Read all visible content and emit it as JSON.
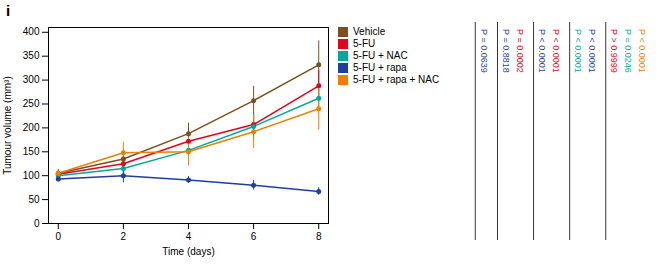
{
  "chart_data": {
    "type": "line",
    "title": "i",
    "xlabel": "Time (days)",
    "ylabel": "Tumour volume (mm³)",
    "x": [
      0,
      2,
      4,
      6,
      8
    ],
    "series": [
      {
        "name": "Vehicle",
        "color": "#7B5020",
        "values": [
          105,
          135,
          188,
          257,
          332
        ],
        "errors": [
          8,
          18,
          22,
          30,
          50
        ]
      },
      {
        "name": "5-FU",
        "color": "#E8001C",
        "values": [
          103,
          125,
          172,
          207,
          288
        ],
        "errors": [
          7,
          15,
          20,
          22,
          32
        ]
      },
      {
        "name": "5-FU + NAC",
        "color": "#00A99D",
        "values": [
          100,
          115,
          153,
          203,
          262
        ],
        "errors": [
          6,
          12,
          25,
          28,
          18
        ]
      },
      {
        "name": "5-FU + rapa",
        "color": "#1F3F9E",
        "values": [
          93,
          100,
          91,
          80,
          67
        ],
        "errors": [
          6,
          15,
          7,
          10,
          8
        ]
      },
      {
        "name": "5-FU + rapa + NAC",
        "color": "#F07F00",
        "values": [
          105,
          148,
          150,
          192,
          240
        ],
        "errors": [
          8,
          22,
          30,
          35,
          45
        ]
      }
    ],
    "xlim": [
      -0.3,
      8.3
    ],
    "xticks": [
      0,
      2,
      4,
      6,
      8
    ],
    "ylim": [
      0,
      410
    ],
    "yticks": [
      0,
      50,
      100,
      150,
      200,
      250,
      300,
      350,
      400
    ],
    "marker": "circle",
    "grid": false,
    "legend": "right",
    "annotations": [
      [
        {
          "text": "P = 0.0639",
          "color": "#1F3F9E"
        }
      ],
      [
        {
          "text": "P = 0.8818",
          "color": "#1F3F9E"
        },
        {
          "text": "P = 0.0002",
          "color": "#E8001C"
        }
      ],
      [
        {
          "text": "P < 0.0001",
          "color": "#1F3F9E"
        },
        {
          "text": "P < 0.0001",
          "color": "#E8001C"
        }
      ],
      [
        {
          "text": "P < 0.0001",
          "color": "#00A99D"
        },
        {
          "text": "P < 0.0001",
          "color": "#1F3F9E"
        }
      ],
      [
        {
          "text": "P > 0.9999",
          "color": "#E8001C"
        },
        {
          "text": "P = 0.0246",
          "color": "#00A99D"
        },
        {
          "text": "P < 0.0001",
          "color": "#F07F00"
        }
      ]
    ]
  }
}
